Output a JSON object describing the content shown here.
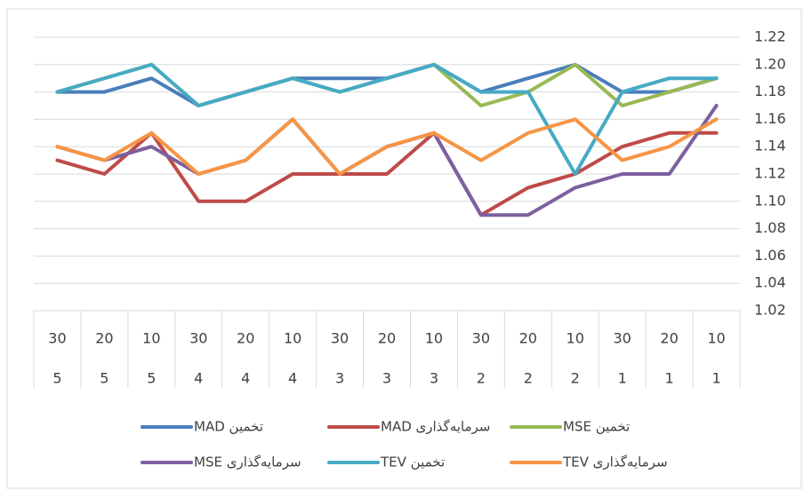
{
  "chart_data": {
    "type": "line",
    "categories": [
      "30",
      "20",
      "10",
      "30",
      "20",
      "10",
      "30",
      "20",
      "10",
      "30",
      "20",
      "10",
      "30",
      "20",
      "10"
    ],
    "category_groups": [
      "5",
      "5",
      "5",
      "4",
      "4",
      "4",
      "3",
      "3",
      "3",
      "2",
      "2",
      "2",
      "1",
      "1",
      "1"
    ],
    "ylim": [
      1.02,
      1.22
    ],
    "yticks": [
      {
        "value": 1.02,
        "label": "1.02"
      },
      {
        "value": 1.04,
        "label": "1.04"
      },
      {
        "value": 1.06,
        "label": "1.06"
      },
      {
        "value": 1.08,
        "label": "1.08"
      },
      {
        "value": 1.1,
        "label": "1.10"
      },
      {
        "value": 1.12,
        "label": "1.12"
      },
      {
        "value": 1.14,
        "label": "1.14"
      },
      {
        "value": 1.16,
        "label": "1.16"
      },
      {
        "value": 1.18,
        "label": "1.18"
      },
      {
        "value": 1.2,
        "label": "1.20"
      },
      {
        "value": 1.22,
        "label": "1.22"
      }
    ],
    "grid": true,
    "legend": "bottom",
    "series": [
      {
        "name": "تخمين MAD",
        "color": "#4a7ebb",
        "values": [
          1.18,
          1.18,
          1.19,
          1.17,
          1.18,
          1.19,
          1.19,
          1.19,
          1.2,
          1.18,
          1.19,
          1.2,
          1.18,
          1.18,
          1.19
        ]
      },
      {
        "name": "سرمایه‌گذاری MAD",
        "color": "#be4b48",
        "values": [
          1.13,
          1.12,
          1.15,
          1.1,
          1.1,
          1.12,
          1.12,
          1.12,
          1.15,
          1.09,
          1.11,
          1.12,
          1.14,
          1.15,
          1.15
        ]
      },
      {
        "name": "تخمین MSE",
        "color": "#98b954",
        "values": [
          1.18,
          1.19,
          1.2,
          1.17,
          1.18,
          1.19,
          1.18,
          1.19,
          1.2,
          1.17,
          1.18,
          1.2,
          1.17,
          1.18,
          1.19
        ]
      },
      {
        "name": "سرمایه‌گذاری MSE",
        "color": "#7d60a0",
        "values": [
          1.14,
          1.13,
          1.14,
          1.12,
          1.13,
          1.16,
          1.12,
          1.14,
          1.15,
          1.09,
          1.09,
          1.11,
          1.12,
          1.12,
          1.17
        ]
      },
      {
        "name": "تخمين TEV",
        "color": "#46aac5",
        "values": [
          1.18,
          1.19,
          1.2,
          1.17,
          1.18,
          1.19,
          1.18,
          1.19,
          1.2,
          1.18,
          1.18,
          1.12,
          1.18,
          1.19,
          1.19
        ]
      },
      {
        "name": "سرمایه‌گذاری TEV",
        "color": "#f69545",
        "values": [
          1.14,
          1.13,
          1.15,
          1.12,
          1.13,
          1.16,
          1.12,
          1.14,
          1.15,
          1.13,
          1.15,
          1.16,
          1.13,
          1.14,
          1.16
        ]
      }
    ]
  }
}
